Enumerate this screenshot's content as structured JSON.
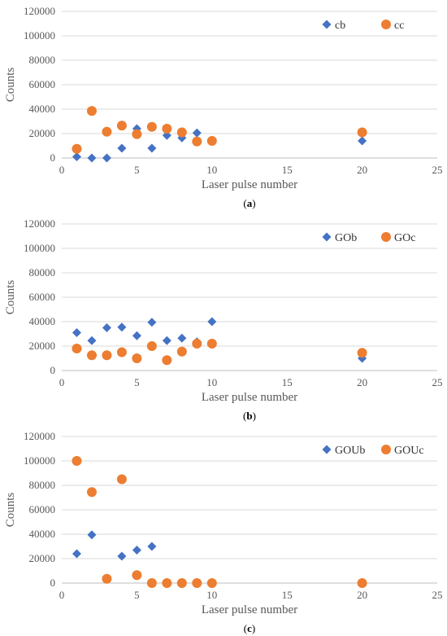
{
  "chart_data": [
    {
      "type": "scatter",
      "panel_label": "a",
      "xlabel": "Laser pulse number",
      "ylabel": "Counts",
      "xlim": [
        0,
        25
      ],
      "ylim": [
        0,
        120000
      ],
      "xticks": [
        0,
        5,
        10,
        15,
        20,
        25
      ],
      "yticks": [
        0,
        20000,
        40000,
        60000,
        80000,
        100000,
        120000
      ],
      "grid": "horizontal",
      "legend_position": "top-right",
      "series": [
        {
          "name": "cb",
          "marker": "diamond",
          "color": "#4472C4",
          "x": [
            1,
            2,
            3,
            4,
            5,
            6,
            7,
            8,
            9,
            10,
            20
          ],
          "y": [
            1000,
            0,
            0,
            8000,
            24000,
            8000,
            18500,
            16500,
            20500,
            14500,
            14000
          ]
        },
        {
          "name": "cc",
          "marker": "circle",
          "color": "#ED7D31",
          "x": [
            1,
            2,
            3,
            4,
            5,
            6,
            7,
            8,
            9,
            10,
            20
          ],
          "y": [
            7500,
            38500,
            21500,
            26500,
            19500,
            25500,
            24000,
            21000,
            13500,
            14000,
            21000
          ]
        }
      ]
    },
    {
      "type": "scatter",
      "panel_label": "b",
      "xlabel": "Laser pulse number",
      "ylabel": "Counts",
      "xlim": [
        0,
        25
      ],
      "ylim": [
        0,
        120000
      ],
      "xticks": [
        0,
        5,
        10,
        15,
        20,
        25
      ],
      "yticks": [
        0,
        20000,
        40000,
        60000,
        80000,
        100000,
        120000
      ],
      "grid": "horizontal",
      "legend_position": "top-right",
      "series": [
        {
          "name": "GOb",
          "marker": "diamond",
          "color": "#4472C4",
          "x": [
            1,
            2,
            3,
            4,
            5,
            6,
            7,
            8,
            9,
            10,
            20
          ],
          "y": [
            31000,
            24500,
            35000,
            35500,
            28500,
            39500,
            24500,
            26500,
            23500,
            40000,
            10000
          ]
        },
        {
          "name": "GOc",
          "marker": "circle",
          "color": "#ED7D31",
          "x": [
            1,
            2,
            3,
            4,
            5,
            6,
            7,
            8,
            9,
            10,
            20
          ],
          "y": [
            18000,
            12500,
            12500,
            15000,
            10000,
            20000,
            8500,
            15500,
            22000,
            22000,
            14500
          ]
        }
      ]
    },
    {
      "type": "scatter",
      "panel_label": "c",
      "xlabel": "Laser pulse number",
      "ylabel": "Counts",
      "xlim": [
        0,
        25
      ],
      "ylim": [
        0,
        120000
      ],
      "xticks": [
        0,
        5,
        10,
        15,
        20,
        25
      ],
      "yticks": [
        0,
        20000,
        40000,
        60000,
        80000,
        100000,
        120000
      ],
      "grid": "horizontal",
      "legend_position": "top-right",
      "series": [
        {
          "name": "GOUb",
          "marker": "diamond",
          "color": "#4472C4",
          "x": [
            1,
            2,
            4,
            5,
            6
          ],
          "y": [
            24000,
            39500,
            22000,
            27000,
            30000
          ]
        },
        {
          "name": "GOUc",
          "marker": "circle",
          "color": "#ED7D31",
          "x": [
            1,
            2,
            3,
            4,
            5,
            6,
            7,
            8,
            9,
            10,
            20
          ],
          "y": [
            100000,
            74500,
            3500,
            85000,
            6500,
            0,
            0,
            0,
            0,
            0,
            0
          ]
        }
      ]
    }
  ],
  "captions": [
    "(a)",
    "(b)",
    "(c)"
  ]
}
